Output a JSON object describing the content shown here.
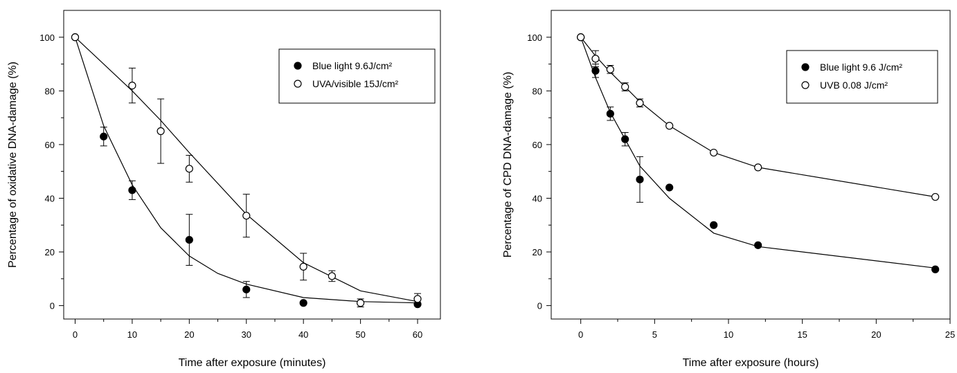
{
  "chart_data": [
    {
      "type": "scatter",
      "title": "",
      "xlabel": "Time after exposure (minutes)",
      "ylabel": "Percentage of oxidative DNA-damage  (%)",
      "xlim": [
        -2,
        64
      ],
      "ylim": [
        -5,
        110
      ],
      "xticks": [
        0,
        10,
        20,
        30,
        40,
        50,
        60
      ],
      "yticks": [
        0,
        20,
        40,
        60,
        80,
        100
      ],
      "xtick_labels": [
        "0",
        "10",
        "20",
        "30",
        "40",
        "50",
        "60"
      ],
      "ytick_labels": [
        "0",
        "20",
        "40",
        "60",
        "80",
        "100"
      ],
      "grid": false,
      "legend_position": "top-right",
      "series": [
        {
          "name": "Blue light 9.6J/cm²",
          "marker": "filled-circle",
          "color": "#000000",
          "points": [
            {
              "x": 0,
              "y": 100,
              "err": 0
            },
            {
              "x": 5,
              "y": 63,
              "err": 3.5
            },
            {
              "x": 10,
              "y": 43,
              "err": 3.5
            },
            {
              "x": 20,
              "y": 24.5,
              "err": 9.5
            },
            {
              "x": 30,
              "y": 6,
              "err": 3
            },
            {
              "x": 40,
              "y": 1,
              "err": 0
            },
            {
              "x": 60,
              "y": 0.5,
              "err": 0
            }
          ],
          "fit": [
            [
              0,
              100
            ],
            [
              5,
              67
            ],
            [
              10,
              45
            ],
            [
              15,
              29
            ],
            [
              20,
              18.5
            ],
            [
              25,
              12
            ],
            [
              30,
              8
            ],
            [
              40,
              3
            ],
            [
              50,
              1.5
            ],
            [
              60,
              1
            ]
          ]
        },
        {
          "name": "UVA/visible 15J/cm²",
          "marker": "open-circle",
          "color": "#000000",
          "points": [
            {
              "x": 0,
              "y": 100,
              "err": 0
            },
            {
              "x": 10,
              "y": 82,
              "err": 6.5
            },
            {
              "x": 15,
              "y": 65,
              "err": 12
            },
            {
              "x": 20,
              "y": 51,
              "err": 5
            },
            {
              "x": 30,
              "y": 33.5,
              "err": 8
            },
            {
              "x": 40,
              "y": 14.5,
              "err": 5
            },
            {
              "x": 45,
              "y": 11,
              "err": 2
            },
            {
              "x": 50,
              "y": 1,
              "err": 1.5
            },
            {
              "x": 60,
              "y": 2.5,
              "err": 2
            }
          ],
          "fit": [
            [
              0,
              100
            ],
            [
              10,
              80
            ],
            [
              15,
              69
            ],
            [
              20,
              57
            ],
            [
              30,
              34
            ],
            [
              40,
              16
            ],
            [
              50,
              5.5
            ],
            [
              60,
              1.5
            ]
          ]
        }
      ]
    },
    {
      "type": "scatter",
      "title": "",
      "xlabel": "Time after exposure (hours)",
      "ylabel": "Percentage of CPD DNA-damage  (%)",
      "xlim": [
        -2,
        25
      ],
      "ylim": [
        -5,
        110
      ],
      "xticks": [
        0,
        5,
        10,
        15,
        20,
        25
      ],
      "yticks": [
        0,
        20,
        40,
        60,
        80,
        100
      ],
      "xtick_labels": [
        "0",
        "5",
        "10",
        "15",
        "20",
        "25"
      ],
      "ytick_labels": [
        "0",
        "20",
        "40",
        "60",
        "80",
        "100"
      ],
      "grid": false,
      "legend_position": "top-right",
      "series": [
        {
          "name": "Blue light 9.6 J/cm²",
          "marker": "filled-circle",
          "color": "#000000",
          "points": [
            {
              "x": 0,
              "y": 100,
              "err": 0
            },
            {
              "x": 1,
              "y": 87.5,
              "err": 2.5
            },
            {
              "x": 2,
              "y": 71.5,
              "err": 2.5
            },
            {
              "x": 3,
              "y": 62,
              "err": 2.5
            },
            {
              "x": 4,
              "y": 47,
              "err": 8.5
            },
            {
              "x": 6,
              "y": 44,
              "err": 0
            },
            {
              "x": 9,
              "y": 30,
              "err": 0
            },
            {
              "x": 12,
              "y": 22.5,
              "err": 0
            },
            {
              "x": 24,
              "y": 13.5,
              "err": 0
            }
          ],
          "fit": [
            [
              0,
              100
            ],
            [
              1,
              85
            ],
            [
              2,
              72
            ],
            [
              3,
              62
            ],
            [
              4,
              52
            ],
            [
              6,
              40
            ],
            [
              9,
              27
            ],
            [
              12,
              22
            ],
            [
              24,
              14
            ]
          ]
        },
        {
          "name": "UVB 0.08 J/cm²",
          "marker": "open-circle",
          "color": "#000000",
          "points": [
            {
              "x": 0,
              "y": 100,
              "err": 0
            },
            {
              "x": 1,
              "y": 92,
              "err": 3
            },
            {
              "x": 2,
              "y": 88,
              "err": 1.5
            },
            {
              "x": 3,
              "y": 81.5,
              "err": 1.5
            },
            {
              "x": 4,
              "y": 75.5,
              "err": 1.5
            },
            {
              "x": 6,
              "y": 67,
              "err": 0
            },
            {
              "x": 9,
              "y": 57,
              "err": 0
            },
            {
              "x": 12,
              "y": 51.5,
              "err": 0
            },
            {
              "x": 24,
              "y": 40.5,
              "err": 0
            }
          ],
          "fit": [
            [
              0,
              100
            ],
            [
              1,
              93
            ],
            [
              2,
              87
            ],
            [
              3,
              81.5
            ],
            [
              4,
              76
            ],
            [
              6,
              67
            ],
            [
              9,
              57
            ],
            [
              12,
              51.5
            ],
            [
              24,
              40.5
            ]
          ]
        }
      ]
    }
  ]
}
